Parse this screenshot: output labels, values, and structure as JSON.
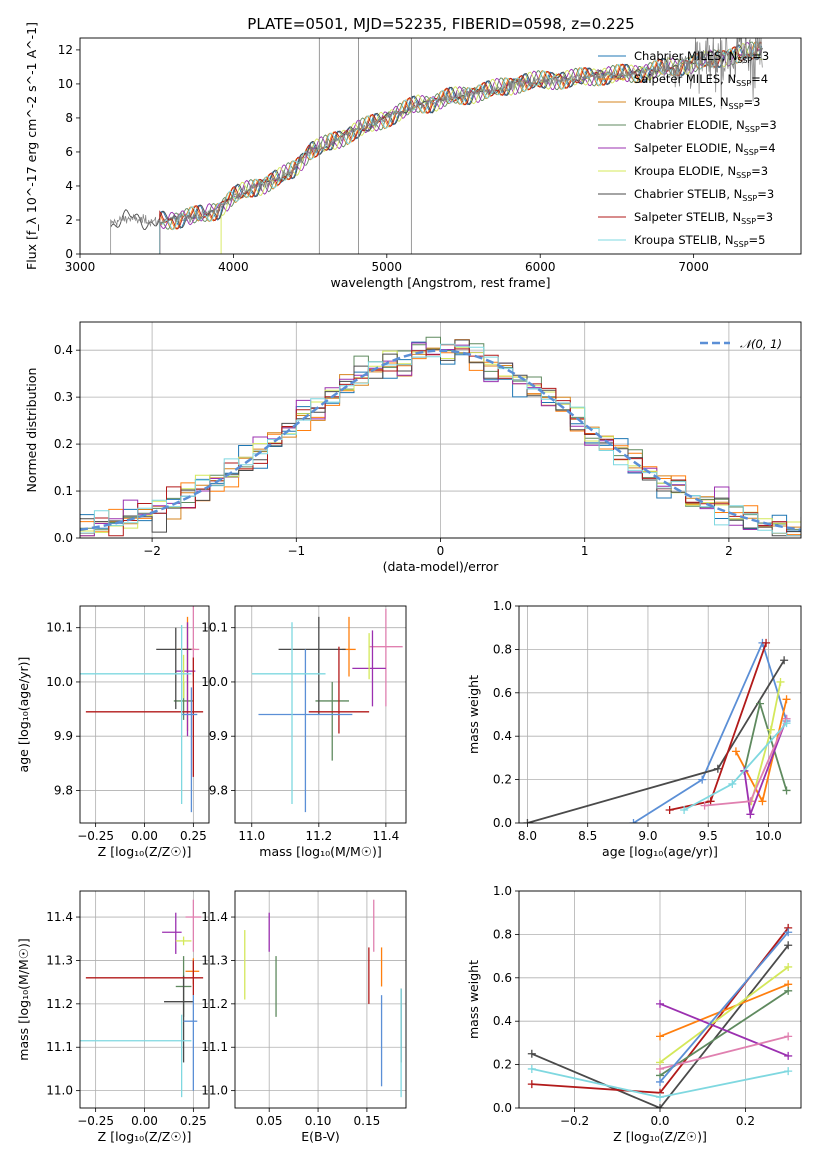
{
  "figure": {
    "title": "PLATE=0501, MJD=52235, FIBERID=0598, z=0.225"
  },
  "colors": {
    "chabrier_miles": "#1f77b4",
    "salpeter_miles": "#ff7f0e",
    "kroupa_miles": "#d6841f",
    "chabrier_elodie": "#5f8a5f",
    "salpeter_elodie": "#9b30b0",
    "kroupa_elodie": "#d4e85a",
    "chabrier_stelib": "#4a4a4a",
    "salpeter_stelib": "#b21a1a",
    "kroupa_stelib": "#7fd8e0",
    "data": "#808080",
    "gaussian": "#5b8fd6",
    "pink": "#e080b0",
    "blue2": "#5b8fd6"
  },
  "chart_data": [
    {
      "id": "spectrum",
      "type": "line",
      "title": "PLATE=0501, MJD=52235, FIBERID=0598, z=0.225",
      "xlabel": "wavelength [Angstrom, rest frame]",
      "ylabel": "Flux [f_λ 10^-17 erg cm^-2 s^-1 A^-1]",
      "xlim": [
        3000,
        7700
      ],
      "ylim": [
        0,
        12.7
      ],
      "xticks": [
        3000,
        4000,
        5000,
        6000,
        7000
      ],
      "yticks": [
        0,
        2,
        4,
        6,
        8,
        10,
        12
      ],
      "grid": false,
      "legend_position": "top-right",
      "series": [
        {
          "name": "Chabrier MILES, N_SSP=3",
          "color": "#1f77b4"
        },
        {
          "name": "Salpeter MILES, N_SSP=4",
          "color": "#ff7f0e"
        },
        {
          "name": "Kroupa MILES, N_SSP=3",
          "color": "#d6841f"
        },
        {
          "name": "Chabrier ELODIE, N_SSP=3",
          "color": "#5f8a5f"
        },
        {
          "name": "Salpeter ELODIE, N_SSP=4",
          "color": "#9b30b0"
        },
        {
          "name": "Kroupa ELODIE, N_SSP=3",
          "color": "#d4e85a"
        },
        {
          "name": "Chabrier STELIB, N_SSP=3",
          "color": "#4a4a4a"
        },
        {
          "name": "Salpeter STELIB, N_SSP=3",
          "color": "#b21a1a"
        },
        {
          "name": "Kroupa STELIB, N_SSP=5",
          "color": "#7fd8e0"
        }
      ],
      "continuum": {
        "x": [
          3200,
          3300,
          3400,
          3500,
          3600,
          3700,
          3800,
          3900,
          4000,
          4100,
          4200,
          4300,
          4400,
          4500,
          4600,
          4700,
          4800,
          4900,
          5000,
          5100,
          5200,
          5300,
          5400,
          5500,
          5600,
          5700,
          5800,
          5900,
          6000,
          6200,
          6400,
          6600,
          6800,
          7000,
          7200,
          7450
        ],
        "y": [
          1.8,
          2.1,
          2.0,
          1.9,
          2.0,
          2.2,
          2.3,
          2.6,
          3.4,
          3.8,
          4.1,
          4.5,
          5.0,
          6.1,
          6.4,
          6.8,
          7.3,
          7.6,
          8.0,
          8.4,
          8.8,
          8.9,
          9.2,
          9.3,
          9.5,
          9.7,
          9.9,
          10.1,
          10.2,
          10.3,
          10.5,
          10.6,
          10.9,
          11.2,
          11.6,
          12.0
        ]
      }
    },
    {
      "id": "residuals",
      "type": "histogram",
      "xlabel": "(data-model)/error",
      "ylabel": "Normed distribution",
      "xlim": [
        -2.5,
        2.5
      ],
      "ylim": [
        0,
        0.46
      ],
      "xticks": [
        -2,
        -1,
        0,
        1,
        2
      ],
      "yticks": [
        0.0,
        0.1,
        0.2,
        0.3,
        0.4
      ],
      "grid": true,
      "legend_position": "top-right",
      "legend": "𝒩(0, 1)"
    },
    {
      "id": "age_vs_Z",
      "type": "scatter",
      "xlabel": "Z [log₁₀(Z/Z☉)]",
      "ylabel": "age  [log₁₀(age/yr)]",
      "xlim": [
        -0.33,
        0.33
      ],
      "ylim": [
        9.74,
        10.14
      ],
      "xticks": [
        -0.25,
        0.0,
        0.25
      ],
      "yticks": [
        9.8,
        9.9,
        10.0,
        10.1
      ],
      "grid": true,
      "points": [
        {
          "x": 0.2,
          "y": 9.965,
          "xerr": [
            0.05,
            0.05
          ],
          "yerr": [
            0.035,
            0.035
          ],
          "color": "#5f8a5f"
        },
        {
          "x": 0.22,
          "y": 10.06,
          "xerr": [
            0.05,
            0.04
          ],
          "yerr": [
            0.15,
            0.06
          ],
          "color": "#ff7f0e"
        },
        {
          "x": 0.25,
          "y": 10.06,
          "xerr": [
            0.03,
            0.03
          ],
          "yerr": [
            0.05,
            0.08
          ],
          "color": "#e080b0"
        },
        {
          "x": 0.22,
          "y": 10.02,
          "xerr": [
            0.06,
            0.04
          ],
          "yerr": [
            0.12,
            0.09
          ],
          "color": "#9b30b0"
        },
        {
          "x": 0.2,
          "y": 10.01,
          "xerr": [
            0.0,
            0.0
          ],
          "yerr": [
            0.04,
            0.04
          ],
          "color": "#d4e85a"
        },
        {
          "x": 0.16,
          "y": 10.06,
          "xerr": [
            0.1,
            0.08
          ],
          "yerr": [
            0.11,
            0.04
          ],
          "color": "#4a4a4a"
        },
        {
          "x": 0.25,
          "y": 9.945,
          "xerr": [
            0.55,
            0.05
          ],
          "yerr": [
            0.12,
            0.1
          ],
          "color": "#b21a1a"
        },
        {
          "x": 0.24,
          "y": 9.94,
          "xerr": [
            0.05,
            0.03
          ],
          "yerr": [
            0.18,
            0.05
          ],
          "color": "#5b8fd6"
        },
        {
          "x": 0.19,
          "y": 10.015,
          "xerr": [
            0.55,
            0.05
          ],
          "yerr": [
            0.24,
            0.09
          ],
          "color": "#7fd8e0"
        }
      ]
    },
    {
      "id": "age_vs_mass",
      "type": "scatter",
      "xlabel": "mass [log₁₀(M/M☉)]",
      "ylabel": "",
      "xlim": [
        10.95,
        11.46
      ],
      "ylim": [
        9.74,
        10.14
      ],
      "xticks": [
        11.0,
        11.2,
        11.4
      ],
      "yticks": [
        9.8,
        9.9,
        10.0,
        10.1
      ],
      "grid": true,
      "points": [
        {
          "x": 11.24,
          "y": 9.965,
          "xerr": [
            0.05,
            0.05
          ],
          "yerr": [
            0.11,
            0.035
          ],
          "color": "#5f8a5f"
        },
        {
          "x": 11.29,
          "y": 10.06,
          "xerr": [
            0.02,
            0.02
          ],
          "yerr": [
            0.05,
            0.06
          ],
          "color": "#ff7f0e"
        },
        {
          "x": 11.4,
          "y": 10.065,
          "xerr": [
            0.05,
            0.05
          ],
          "yerr": [
            0.11,
            0.07
          ],
          "color": "#e080b0"
        },
        {
          "x": 11.36,
          "y": 10.025,
          "xerr": [
            0.06,
            0.04
          ],
          "yerr": [
            0.07,
            0.07
          ],
          "color": "#9b30b0"
        },
        {
          "x": 11.35,
          "y": 10.055,
          "xerr": [
            0.0,
            0.0
          ],
          "yerr": [
            0.05,
            0.035
          ],
          "color": "#d4e85a"
        },
        {
          "x": 11.2,
          "y": 10.06,
          "xerr": [
            0.12,
            0.08
          ],
          "yerr": [
            0.12,
            0.06
          ],
          "color": "#4a4a4a"
        },
        {
          "x": 11.26,
          "y": 9.945,
          "xerr": [
            0.09,
            0.09
          ],
          "yerr": [
            0.04,
            0.12
          ],
          "color": "#b21a1a"
        },
        {
          "x": 11.16,
          "y": 9.94,
          "xerr": [
            0.14,
            0.14
          ],
          "yerr": [
            0.18,
            0.12
          ],
          "color": "#5b8fd6"
        },
        {
          "x": 11.12,
          "y": 10.015,
          "xerr": [
            0.12,
            0.1
          ],
          "yerr": [
            0.24,
            0.095
          ],
          "color": "#7fd8e0"
        }
      ]
    },
    {
      "id": "weight_vs_age",
      "type": "line",
      "xlabel": "age  [log₁₀(age/yr)]",
      "ylabel": "mass weight",
      "xlim": [
        7.93,
        10.27
      ],
      "ylim": [
        0.0,
        1.0
      ],
      "xticks": [
        8.0,
        8.5,
        9.0,
        9.5,
        10.0
      ],
      "yticks": [
        0.0,
        0.2,
        0.4,
        0.6,
        0.8,
        1.0
      ],
      "grid": true,
      "series": [
        {
          "color": "#5b8fd6",
          "x": [
            8.88,
            9.45,
            9.95,
            10.15
          ],
          "y": [
            0.0,
            0.2,
            0.83,
            0.47
          ]
        },
        {
          "color": "#4a4a4a",
          "x": [
            8.0,
            9.58,
            10.13
          ],
          "y": [
            0.0,
            0.25,
            0.75
          ]
        },
        {
          "color": "#b21a1a",
          "x": [
            9.18,
            9.52,
            9.98
          ],
          "y": [
            0.06,
            0.1,
            0.83
          ]
        },
        {
          "color": "#ff7f0e",
          "x": [
            9.73,
            9.95,
            10.15
          ],
          "y": [
            0.33,
            0.1,
            0.57
          ]
        },
        {
          "color": "#5f8a5f",
          "x": [
            9.8,
            9.93,
            10.15
          ],
          "y": [
            0.24,
            0.55,
            0.15
          ]
        },
        {
          "color": "#d4e85a",
          "x": [
            9.86,
            10.02,
            10.1
          ],
          "y": [
            0.1,
            0.43,
            0.65
          ]
        },
        {
          "color": "#9b30b0",
          "x": [
            9.8,
            9.85,
            10.15
          ],
          "y": [
            0.24,
            0.04,
            0.48
          ]
        },
        {
          "color": "#e080b0",
          "x": [
            9.47,
            9.85,
            10.15
          ],
          "y": [
            0.08,
            0.1,
            0.48
          ]
        },
        {
          "color": "#7fd8e0",
          "x": [
            9.3,
            9.7,
            10.15
          ],
          "y": [
            0.06,
            0.18,
            0.46
          ]
        }
      ]
    },
    {
      "id": "mass_vs_Z",
      "type": "scatter",
      "xlabel": "Z [log₁₀(Z/Z☉)]",
      "ylabel": "mass [log₁₀(M/M☉)]",
      "xlim": [
        -0.33,
        0.33
      ],
      "ylim": [
        10.96,
        11.46
      ],
      "xticks": [
        -0.25,
        0.0,
        0.25
      ],
      "yticks": [
        11.0,
        11.1,
        11.2,
        11.3,
        11.4
      ],
      "grid": true,
      "points": [
        {
          "x": 0.2,
          "y": 11.24,
          "xerr": [
            0.04,
            0.04
          ],
          "yerr": [
            0.07,
            0.07
          ],
          "color": "#5f8a5f"
        },
        {
          "x": 0.25,
          "y": 11.275,
          "xerr": [
            0.04,
            0.03
          ],
          "yerr": [
            0.03,
            0.03
          ],
          "color": "#ff7f0e"
        },
        {
          "x": 0.25,
          "y": 11.4,
          "xerr": [
            0.04,
            0.04
          ],
          "yerr": [
            0.08,
            0.04
          ],
          "color": "#e080b0"
        },
        {
          "x": 0.16,
          "y": 11.365,
          "xerr": [
            0.07,
            0.03
          ],
          "yerr": [
            0.05,
            0.045
          ],
          "color": "#9b30b0"
        },
        {
          "x": 0.2,
          "y": 11.345,
          "xerr": [
            0.04,
            0.04
          ],
          "yerr": [
            0.01,
            0.01
          ],
          "color": "#d4e85a"
        },
        {
          "x": 0.2,
          "y": 11.205,
          "xerr": [
            0.1,
            0.05
          ],
          "yerr": [
            0.14,
            0.06
          ],
          "color": "#4a4a4a"
        },
        {
          "x": 0.25,
          "y": 11.26,
          "xerr": [
            0.55,
            0.05
          ],
          "yerr": [
            0.04,
            0.04
          ],
          "color": "#b21a1a"
        },
        {
          "x": 0.25,
          "y": 11.16,
          "xerr": [
            0.05,
            0.02
          ],
          "yerr": [
            0.16,
            0.06
          ],
          "color": "#5b8fd6"
        },
        {
          "x": 0.19,
          "y": 11.115,
          "xerr": [
            0.55,
            0.05
          ],
          "yerr": [
            0.13,
            0.06
          ],
          "color": "#7fd8e0"
        }
      ]
    },
    {
      "id": "mass_vs_ebv",
      "type": "scatter",
      "xlabel": "E(B-V)",
      "ylabel": "",
      "xlim": [
        0.015,
        0.19
      ],
      "ylim": [
        10.96,
        11.46
      ],
      "xticks": [
        0.05,
        0.1,
        0.15
      ],
      "yticks": [
        11.0,
        11.1,
        11.2,
        11.3,
        11.4
      ],
      "grid": true,
      "points": [
        {
          "x": 0.057,
          "y": 11.24,
          "yerr": [
            0.07,
            0.07
          ],
          "color": "#5f8a5f"
        },
        {
          "x": 0.165,
          "y": 11.28,
          "yerr": [
            0.04,
            0.05
          ],
          "color": "#ff7f0e"
        },
        {
          "x": 0.157,
          "y": 11.37,
          "yerr": [
            0.05,
            0.07
          ],
          "color": "#e080b0"
        },
        {
          "x": 0.05,
          "y": 11.36,
          "yerr": [
            0.04,
            0.05
          ],
          "color": "#9b30b0"
        },
        {
          "x": 0.025,
          "y": 11.29,
          "yerr": [
            0.08,
            0.08
          ],
          "color": "#d4e85a"
        },
        {
          "x": 0.185,
          "y": 11.205,
          "yerr": [
            0.14,
            0.03
          ],
          "color": "#4a4a4a"
        },
        {
          "x": 0.152,
          "y": 11.26,
          "yerr": [
            0.06,
            0.07
          ],
          "color": "#b21a1a"
        },
        {
          "x": 0.165,
          "y": 11.16,
          "yerr": [
            0.15,
            0.06
          ],
          "color": "#5b8fd6"
        },
        {
          "x": 0.185,
          "y": 11.115,
          "yerr": [
            0.13,
            0.12
          ],
          "color": "#7fd8e0"
        }
      ]
    },
    {
      "id": "weight_vs_Z",
      "type": "line",
      "xlabel": "Z [log₁₀(Z/Z☉)]",
      "ylabel": "mass weight",
      "xlim": [
        -0.33,
        0.33
      ],
      "ylim": [
        0.0,
        1.0
      ],
      "xticks": [
        -0.2,
        0.0,
        0.2
      ],
      "yticks": [
        0.0,
        0.2,
        0.4,
        0.6,
        0.8,
        1.0
      ],
      "grid": true,
      "series": [
        {
          "color": "#4a4a4a",
          "x": [
            -0.3,
            0.0,
            0.3
          ],
          "y": [
            0.25,
            0.0,
            0.75
          ]
        },
        {
          "color": "#b21a1a",
          "x": [
            -0.3,
            0.0,
            0.3
          ],
          "y": [
            0.11,
            0.07,
            0.83
          ]
        },
        {
          "color": "#7fd8e0",
          "x": [
            -0.3,
            0.0,
            0.3
          ],
          "y": [
            0.18,
            0.05,
            0.17
          ]
        },
        {
          "color": "#ff7f0e",
          "x": [
            0.0,
            0.3
          ],
          "y": [
            0.33,
            0.57
          ]
        },
        {
          "color": "#5f8a5f",
          "x": [
            0.0,
            0.3
          ],
          "y": [
            0.15,
            0.54
          ]
        },
        {
          "color": "#d4e85a",
          "x": [
            0.0,
            0.3
          ],
          "y": [
            0.21,
            0.65
          ]
        },
        {
          "color": "#9b30b0",
          "x": [
            0.0,
            0.3
          ],
          "y": [
            0.48,
            0.24
          ]
        },
        {
          "color": "#e080b0",
          "x": [
            0.0,
            0.3
          ],
          "y": [
            0.18,
            0.33
          ]
        },
        {
          "color": "#5b8fd6",
          "x": [
            0.0,
            0.3
          ],
          "y": [
            0.12,
            0.81
          ]
        }
      ]
    }
  ]
}
